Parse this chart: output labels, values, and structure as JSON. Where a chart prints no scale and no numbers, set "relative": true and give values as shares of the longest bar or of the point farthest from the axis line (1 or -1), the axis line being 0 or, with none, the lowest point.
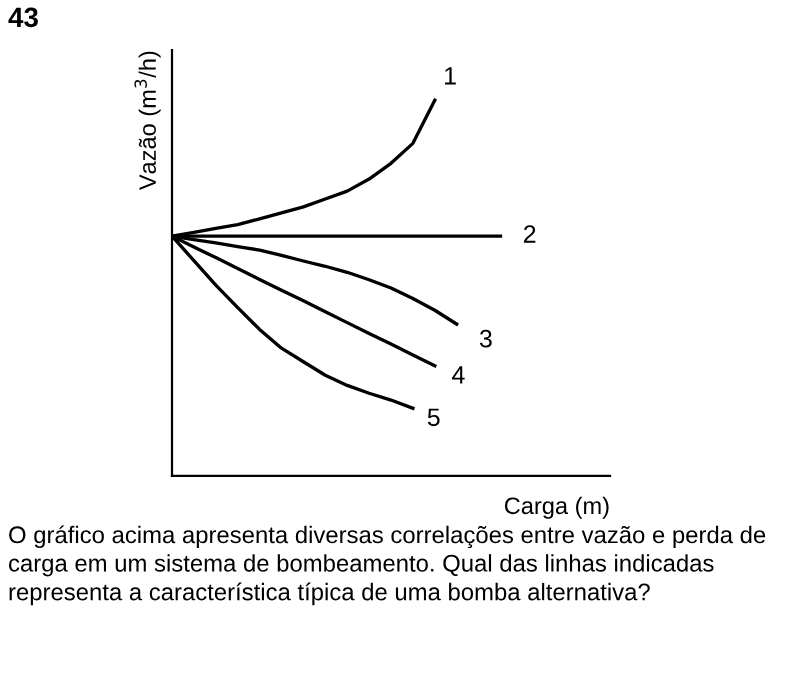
{
  "chart_data": {
    "type": "line",
    "relative": true,
    "xlabel": "Carga (m)",
    "ylabel": "Vazão (m$^{3}$/h)",
    "categories": [
      null,
      null,
      null,
      null,
      null,
      null,
      null,
      null,
      null,
      null,
      null,
      null,
      null,
      null,
      null,
      null
    ],
    "series": [
      {
        "name": "1",
        "color": "#000000",
        "values": [
          0.638,
          0.648,
          0.659,
          0.669,
          0.684,
          0.7,
          0.716,
          0.737,
          0.758,
          0.79,
          0.832,
          0.885,
          1,
          null,
          null,
          null
        ]
      },
      {
        "name": "2",
        "color": "#000000",
        "values": [
          0.638,
          0.638,
          0.638,
          0.638,
          0.638,
          0.638,
          0.638,
          0.638,
          0.638,
          0.638,
          0.638,
          0.638,
          0.638,
          0.638,
          0.638,
          0.638
        ]
      },
      {
        "name": "3",
        "color": "#000000",
        "values": [
          0.638,
          0.629,
          0.62,
          0.61,
          0.601,
          0.587,
          0.572,
          0.558,
          0.542,
          0.522,
          0.5,
          0.472,
          0.441,
          0.404,
          null,
          null
        ]
      },
      {
        "name": "4",
        "color": "#000000",
        "values": [
          0.638,
          0.609,
          0.581,
          0.552,
          0.523,
          0.494,
          0.466,
          0.437,
          0.408,
          0.379,
          0.351,
          0.322,
          0.293,
          null,
          null,
          null
        ]
      },
      {
        "name": "5",
        "color": "#000000",
        "values": [
          0.638,
          0.573,
          0.508,
          0.448,
          0.39,
          0.34,
          0.304,
          0.268,
          0.241,
          0.22,
          0.202,
          0.18,
          null,
          null,
          null,
          null
        ]
      }
    ],
    "annotations": [
      "43",
      "O gráfico acima apresenta diversas correlações entre vazão e perda de carga em um sistema de bombeamento. Qual das linhas indicadas representa a característica típica de uma bomba alternativa?"
    ],
    "legend": false
  }
}
